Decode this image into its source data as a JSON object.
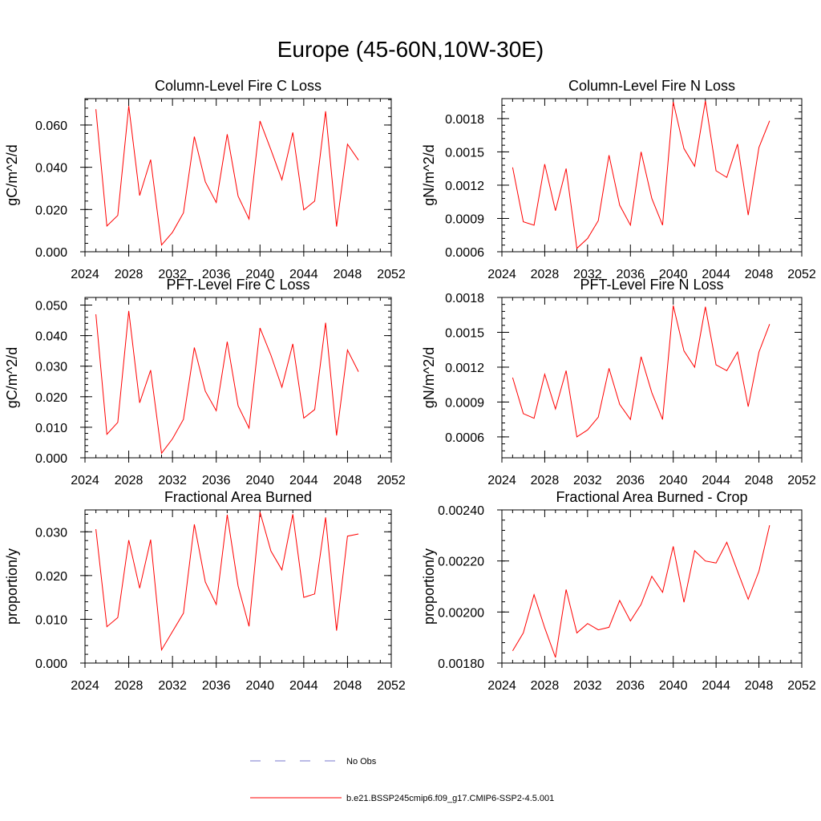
{
  "title": "Europe (45-60N,10W-30E)",
  "colors": {
    "model": "#ff0000",
    "obs": "#7777cc",
    "axis": "#000000"
  },
  "legend": {
    "obs_label": "No Obs",
    "model_label": "b.e21.BSSP245cmip6.f09_g17.CMIP6-SSP2-4.5.001"
  },
  "chart_data": [
    {
      "type": "line",
      "title": "Column-Level Fire C Loss",
      "ylabel": "gC/m^2/d",
      "xlim": [
        2024,
        2052
      ],
      "xticks": [
        2024,
        2028,
        2032,
        2036,
        2040,
        2044,
        2048,
        2052
      ],
      "ylim": [
        0.0,
        0.0725
      ],
      "yticks": [
        "0.000",
        "0.020",
        "0.040",
        "0.060"
      ],
      "ytick_values": [
        0.0,
        0.02,
        0.04,
        0.06
      ],
      "x": [
        2025,
        2026,
        2027,
        2028,
        2029,
        2030,
        2031,
        2032,
        2033,
        2034,
        2035,
        2036,
        2037,
        2038,
        2039,
        2040,
        2041,
        2042,
        2043,
        2044,
        2045,
        2046,
        2047,
        2048,
        2049
      ],
      "series": [
        {
          "name": "b.e21.BSSP245cmip6.f09_g17.CMIP6-SSP2-4.5.001",
          "values": [
            0.0675,
            0.0122,
            0.0172,
            0.069,
            0.0266,
            0.0436,
            0.0032,
            0.0092,
            0.0184,
            0.0545,
            0.0331,
            0.0233,
            0.0556,
            0.0263,
            0.0155,
            0.0619,
            0.0483,
            0.0341,
            0.0565,
            0.0198,
            0.024,
            0.0665,
            0.0119,
            0.0509,
            0.0434
          ]
        }
      ]
    },
    {
      "type": "line",
      "title": "Column-Level Fire N Loss",
      "ylabel": "gN/m^2/d",
      "xlim": [
        2024,
        2052
      ],
      "xticks": [
        2024,
        2028,
        2032,
        2036,
        2040,
        2044,
        2048,
        2052
      ],
      "ylim": [
        0.0006,
        0.00198
      ],
      "yticks": [
        "0.0006",
        "0.0009",
        "0.0012",
        "0.0015",
        "0.0018"
      ],
      "ytick_values": [
        0.0006,
        0.0009,
        0.0012,
        0.0015,
        0.0018
      ],
      "x": [
        2025,
        2026,
        2027,
        2028,
        2029,
        2030,
        2031,
        2032,
        2033,
        2034,
        2035,
        2036,
        2037,
        2038,
        2039,
        2040,
        2041,
        2042,
        2043,
        2044,
        2045,
        2046,
        2047,
        2048,
        2049
      ],
      "series": [
        {
          "name": "b.e21.BSSP245cmip6.f09_g17.CMIP6-SSP2-4.5.001",
          "values": [
            0.00136,
            0.00087,
            0.00084,
            0.00139,
            0.00097,
            0.00135,
            0.00063,
            0.00072,
            0.00088,
            0.00147,
            0.00102,
            0.00084,
            0.0015,
            0.00108,
            0.00084,
            0.00195,
            0.00153,
            0.00137,
            0.00196,
            0.00133,
            0.00127,
            0.00157,
            0.00093,
            0.00154,
            0.00178
          ]
        }
      ]
    },
    {
      "type": "line",
      "title": "PFT-Level Fire C Loss",
      "ylabel": "gC/m^2/d",
      "xlim": [
        2024,
        2052
      ],
      "xticks": [
        2024,
        2028,
        2032,
        2036,
        2040,
        2044,
        2048,
        2052
      ],
      "ylim": [
        0.0,
        0.0525
      ],
      "yticks": [
        "0.000",
        "0.010",
        "0.020",
        "0.030",
        "0.040",
        "0.050"
      ],
      "ytick_values": [
        0.0,
        0.01,
        0.02,
        0.03,
        0.04,
        0.05
      ],
      "x": [
        2025,
        2026,
        2027,
        2028,
        2029,
        2030,
        2031,
        2032,
        2033,
        2034,
        2035,
        2036,
        2037,
        2038,
        2039,
        2040,
        2041,
        2042,
        2043,
        2044,
        2045,
        2046,
        2047,
        2048,
        2049
      ],
      "series": [
        {
          "name": "b.e21.BSSP245cmip6.f09_g17.CMIP6-SSP2-4.5.001",
          "values": [
            0.047,
            0.0077,
            0.0116,
            0.0481,
            0.018,
            0.0287,
            0.0015,
            0.0062,
            0.0126,
            0.0361,
            0.0218,
            0.0154,
            0.038,
            0.017,
            0.0097,
            0.0425,
            0.0336,
            0.0231,
            0.0373,
            0.013,
            0.0158,
            0.0442,
            0.0073,
            0.0353,
            0.0282
          ]
        }
      ]
    },
    {
      "type": "line",
      "title": "PFT-Level Fire N Loss",
      "ylabel": "gN/m^2/d",
      "xlim": [
        2024,
        2052
      ],
      "xticks": [
        2024,
        2028,
        2032,
        2036,
        2040,
        2044,
        2048,
        2052
      ],
      "ylim": [
        0.00042,
        0.0018
      ],
      "yticks": [
        "0.0006",
        "0.0009",
        "0.0012",
        "0.0015",
        "0.0018"
      ],
      "ytick_values": [
        0.0006,
        0.0009,
        0.0012,
        0.0015,
        0.0018
      ],
      "x": [
        2025,
        2026,
        2027,
        2028,
        2029,
        2030,
        2031,
        2032,
        2033,
        2034,
        2035,
        2036,
        2037,
        2038,
        2039,
        2040,
        2041,
        2042,
        2043,
        2044,
        2045,
        2046,
        2047,
        2048,
        2049
      ],
      "series": [
        {
          "name": "b.e21.BSSP245cmip6.f09_g17.CMIP6-SSP2-4.5.001",
          "values": [
            0.00111,
            0.0008,
            0.00076,
            0.00114,
            0.00084,
            0.00117,
            0.0006,
            0.00066,
            0.00077,
            0.00119,
            0.00088,
            0.00075,
            0.00129,
            0.00098,
            0.00075,
            0.00173,
            0.00134,
            0.0012,
            0.00172,
            0.00122,
            0.00117,
            0.00133,
            0.00086,
            0.00133,
            0.00157
          ]
        }
      ]
    },
    {
      "type": "line",
      "title": "Fractional Area Burned",
      "ylabel": "proportion/y",
      "xlim": [
        2024,
        2052
      ],
      "xticks": [
        2024,
        2028,
        2032,
        2036,
        2040,
        2044,
        2048,
        2052
      ],
      "ylim": [
        0.0,
        0.035
      ],
      "yticks": [
        "0.000",
        "0.010",
        "0.020",
        "0.030"
      ],
      "ytick_values": [
        0.0,
        0.01,
        0.02,
        0.03
      ],
      "x": [
        2025,
        2026,
        2027,
        2028,
        2029,
        2030,
        2031,
        2032,
        2033,
        2034,
        2035,
        2036,
        2037,
        2038,
        2039,
        2040,
        2041,
        2042,
        2043,
        2044,
        2045,
        2046,
        2047,
        2048,
        2049
      ],
      "series": [
        {
          "name": "b.e21.BSSP245cmip6.f09_g17.CMIP6-SSP2-4.5.001",
          "values": [
            0.0306,
            0.0083,
            0.0104,
            0.0281,
            0.0171,
            0.0282,
            0.003,
            0.0072,
            0.0114,
            0.0317,
            0.0185,
            0.0134,
            0.0339,
            0.0176,
            0.0084,
            0.0345,
            0.0256,
            0.0213,
            0.034,
            0.015,
            0.0158,
            0.0333,
            0.0074,
            0.029,
            0.0295
          ]
        }
      ]
    },
    {
      "type": "line",
      "title": "Fractional Area Burned - Crop",
      "ylabel": "proportion/y",
      "xlim": [
        2024,
        2052
      ],
      "xticks": [
        2024,
        2028,
        2032,
        2036,
        2040,
        2044,
        2048,
        2052
      ],
      "ylim": [
        0.0018,
        0.0024
      ],
      "yticks": [
        "0.00180",
        "0.00200",
        "0.00220",
        "0.00240"
      ],
      "ytick_values": [
        0.0018,
        0.002,
        0.0022,
        0.0024
      ],
      "x": [
        2025,
        2026,
        2027,
        2028,
        2029,
        2030,
        2031,
        2032,
        2033,
        2034,
        2035,
        2036,
        2037,
        2038,
        2039,
        2040,
        2041,
        2042,
        2043,
        2044,
        2045,
        2046,
        2047,
        2048,
        2049
      ],
      "series": [
        {
          "name": "b.e21.BSSP245cmip6.f09_g17.CMIP6-SSP2-4.5.001",
          "values": [
            0.001848,
            0.001918,
            0.002068,
            0.001938,
            0.001822,
            0.002088,
            0.001918,
            0.001955,
            0.00193,
            0.00194,
            0.002045,
            0.001965,
            0.00203,
            0.00214,
            0.002077,
            0.002257,
            0.002038,
            0.00224,
            0.0022,
            0.002192,
            0.002273,
            0.00216,
            0.00205,
            0.00216,
            0.00234
          ]
        }
      ]
    }
  ]
}
